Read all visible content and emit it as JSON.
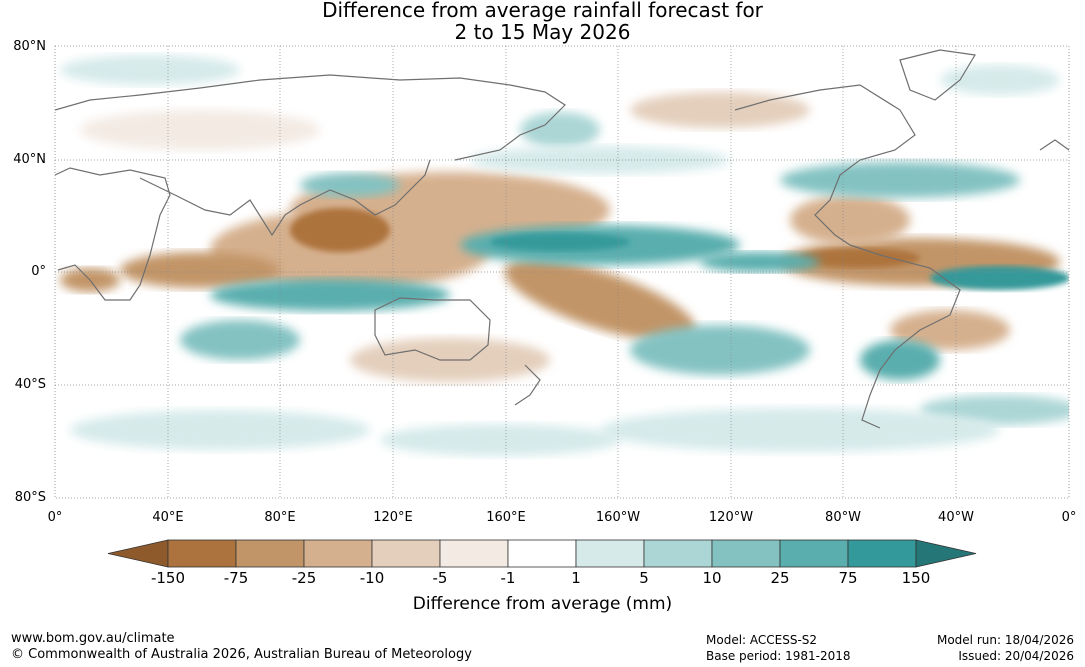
{
  "title": {
    "line1": "Difference from average rainfall forecast for",
    "line2": "2 to 15 May 2026"
  },
  "map": {
    "latitude_labels": [
      "80°N",
      "40°N",
      "0°",
      "40°S",
      "80°S"
    ],
    "longitude_labels": [
      "0°",
      "40°E",
      "80°E",
      "120°E",
      "160°E",
      "160°W",
      "120°W",
      "80°W",
      "40°W",
      "0°"
    ]
  },
  "legend": {
    "title": "Difference from average (mm)",
    "ticks": [
      "-150",
      "-75",
      "-25",
      "-10",
      "-5",
      "-1",
      "1",
      "5",
      "10",
      "25",
      "75",
      "150"
    ],
    "bins": [
      {
        "range": "< -150",
        "color": "#8f5a2b"
      },
      {
        "range": "-150 to -75",
        "color": "#ad733e"
      },
      {
        "range": "-75 to -25",
        "color": "#c29568"
      },
      {
        "range": "-25 to -10",
        "color": "#d5b08e"
      },
      {
        "range": "-10 to -5",
        "color": "#e4cfbc"
      },
      {
        "range": "-5 to -1",
        "color": "#f3eae3"
      },
      {
        "range": "-1 to 1",
        "color": "#ffffff"
      },
      {
        "range": "1 to 5",
        "color": "#d6eaea"
      },
      {
        "range": "5 to 10",
        "color": "#acd6d6"
      },
      {
        "range": "10 to 25",
        "color": "#84c2c2"
      },
      {
        "range": "25 to 75",
        "color": "#5aaeae"
      },
      {
        "range": "75 to 150",
        "color": "#34999a"
      },
      {
        "range": "> 150",
        "color": "#257676"
      }
    ]
  },
  "footer": {
    "website": "www.bom.gov.au/climate",
    "copyright": "© Commonwealth of Australia 2026, Australian Bureau of Meteorology",
    "model": "Model: ACCESS-S2",
    "base_period": "Base period: 1981-2018",
    "model_run": "Model run: 18/04/2026",
    "issued": "Issued: 20/04/2026"
  }
}
